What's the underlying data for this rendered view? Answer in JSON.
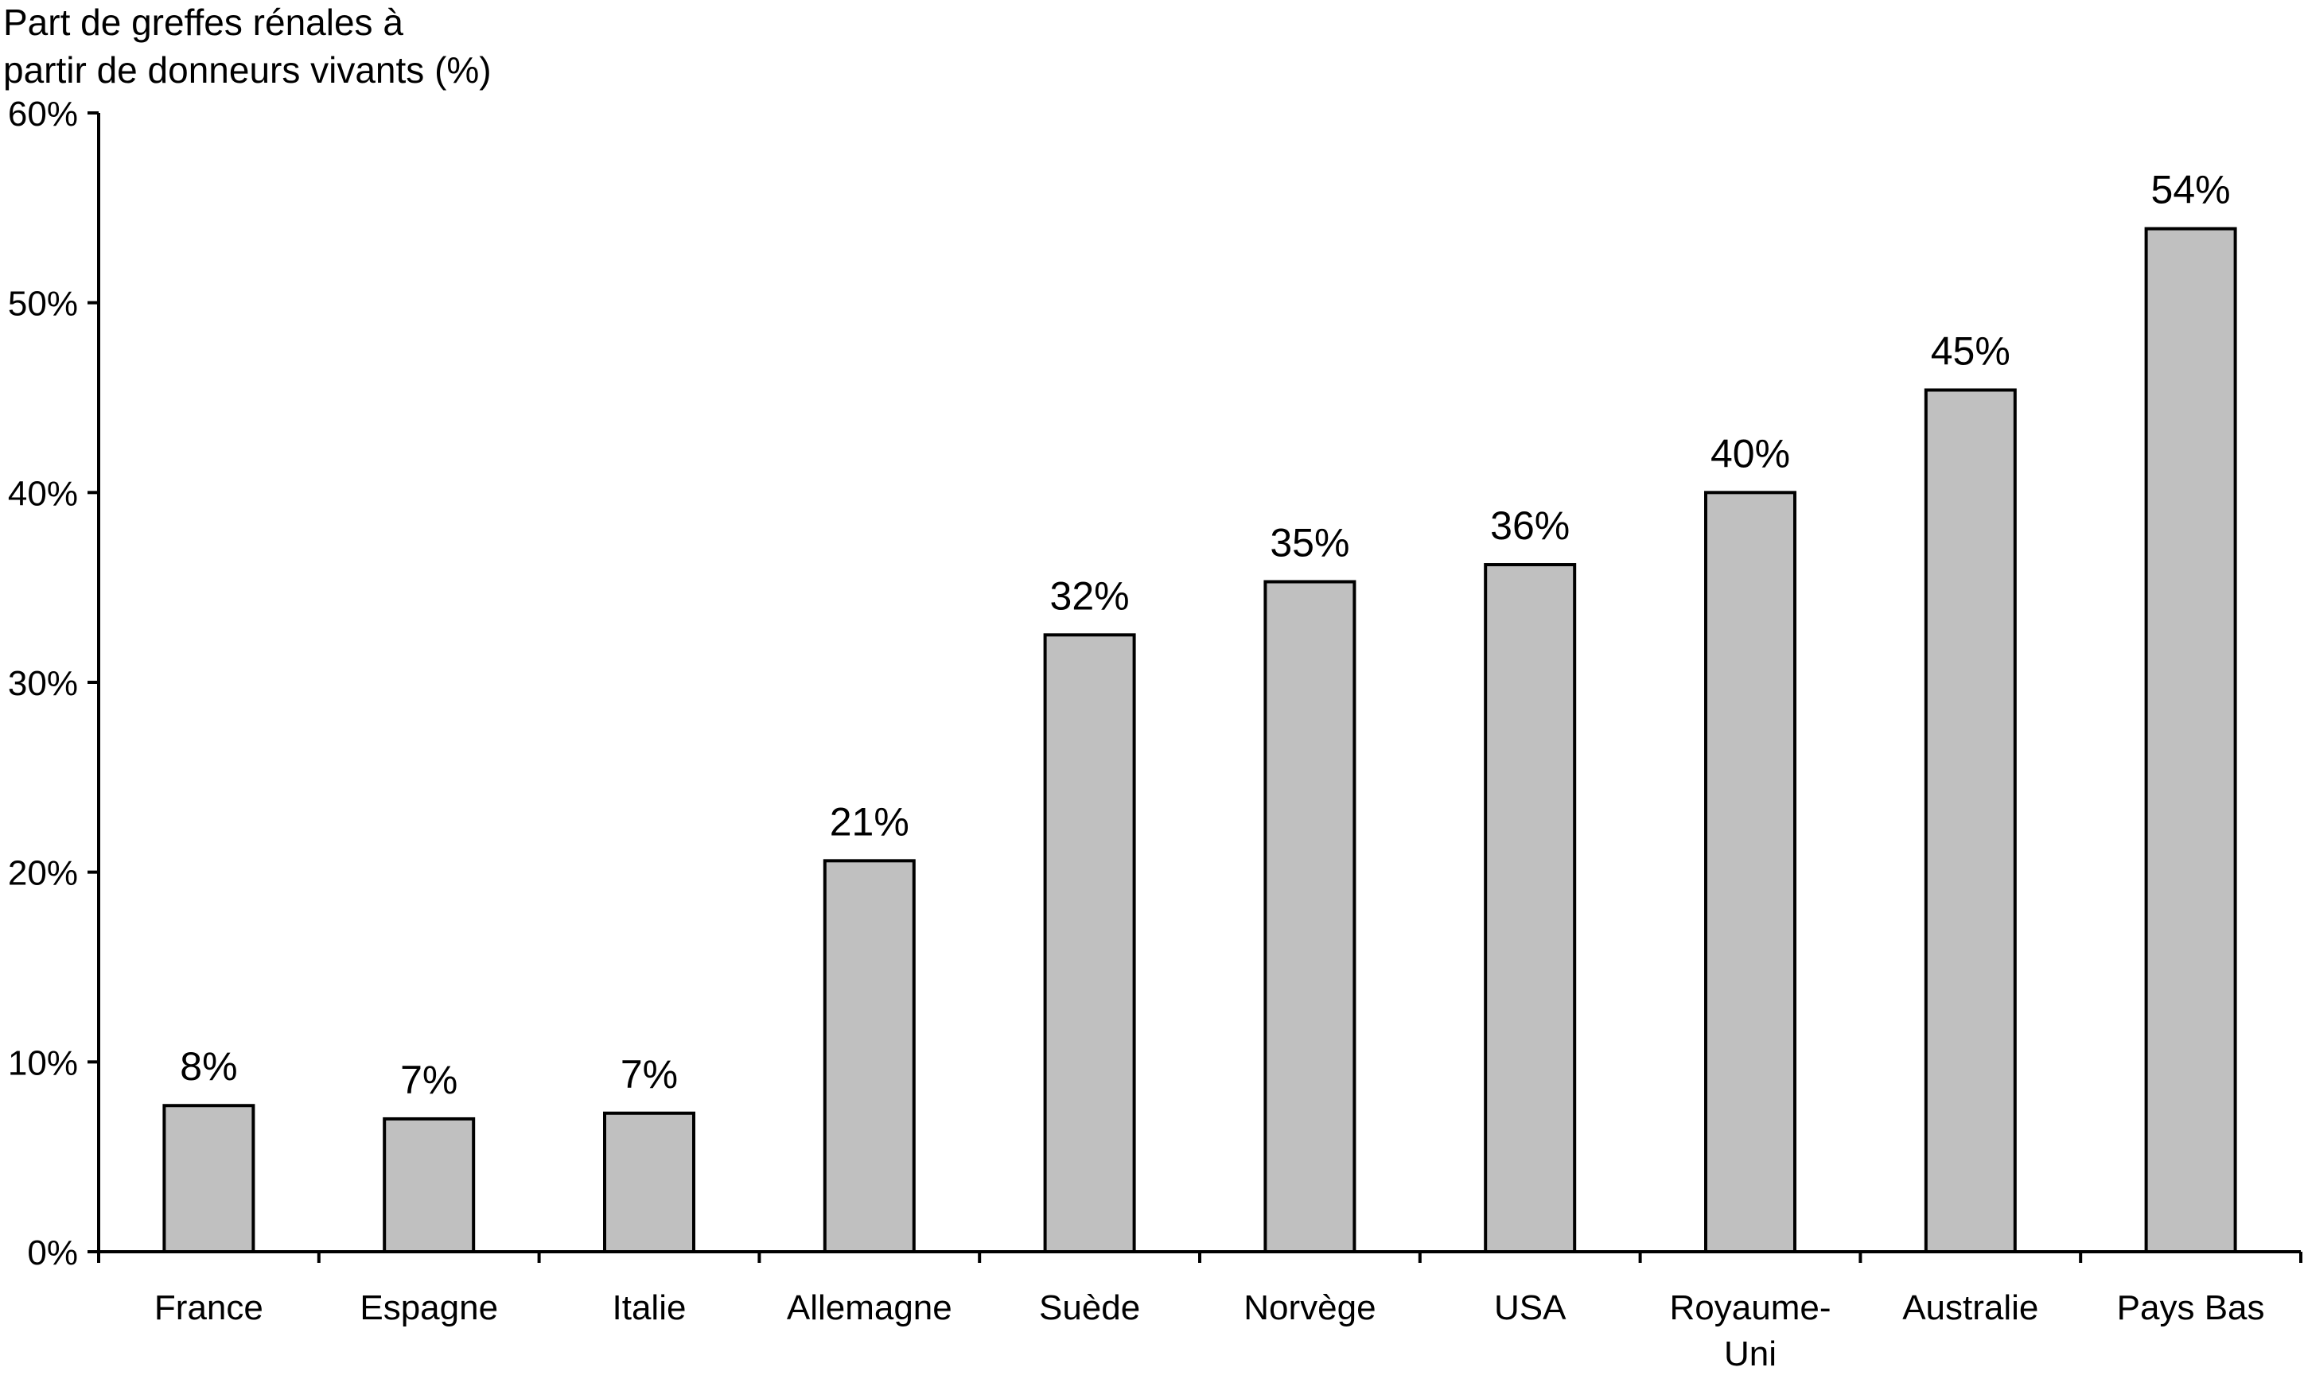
{
  "chart_data": {
    "type": "bar",
    "title": "",
    "xlabel": "",
    "ylabel": [
      "Part de greffes rénales à",
      "partir de donneurs vivants (%)"
    ],
    "categories": [
      [
        "France"
      ],
      [
        "Espagne"
      ],
      [
        "Italie"
      ],
      [
        "Allemagne"
      ],
      [
        "Suède"
      ],
      [
        "Norvège"
      ],
      [
        "USA"
      ],
      [
        "Royaume-",
        "Uni"
      ],
      [
        "Australie"
      ],
      [
        "Pays Bas"
      ]
    ],
    "values": [
      7.7,
      7.0,
      7.3,
      20.6,
      32.5,
      35.3,
      36.2,
      40.0,
      45.4,
      53.9
    ],
    "data_labels": [
      "8%",
      "7%",
      "7%",
      "21%",
      "32%",
      "35%",
      "36%",
      "40%",
      "45%",
      "54%"
    ],
    "yticks": [
      0,
      10,
      20,
      30,
      40,
      50,
      60
    ],
    "ytick_labels": [
      "0%",
      "10%",
      "20%",
      "30%",
      "40%",
      "50%",
      "60%"
    ],
    "ylim": [
      0,
      60
    ],
    "grid": false,
    "legend": "none",
    "colors": {
      "bar_fill": "#c0c0c0",
      "bar_stroke": "#000000",
      "axis": "#000000"
    }
  }
}
